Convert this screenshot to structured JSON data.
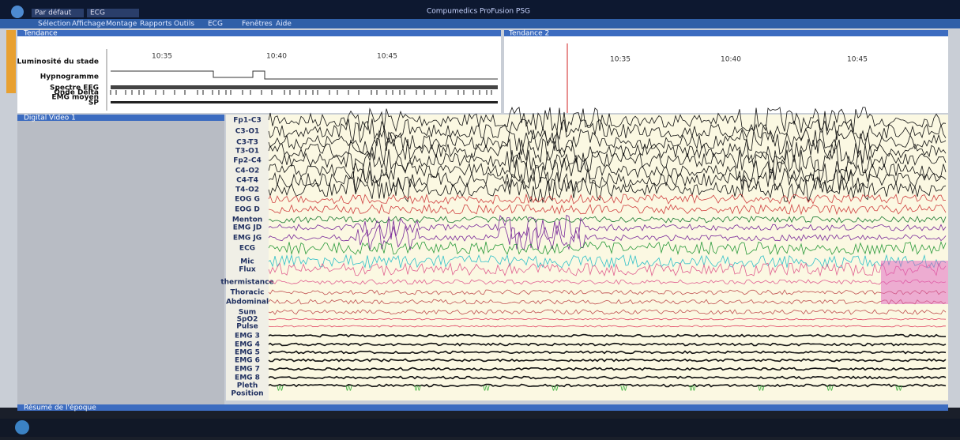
{
  "titlebar": {
    "tabs": [
      "Par défaut",
      "ECG"
    ],
    "title": "Compumedics ProFusion PSG"
  },
  "menu": [
    "Sélection",
    "Affichage",
    "Montage",
    "Rapports",
    "Outils",
    "ECG",
    "Fenêtres",
    "Aide"
  ],
  "trend1": {
    "title": "Tendance",
    "times": [
      "10:35",
      "10:40",
      "10:45"
    ],
    "rows": [
      "Luminosité du stade",
      "Hypnogramme",
      "Spectre EEG",
      "Onde Delta",
      "EMG moyen",
      "SP"
    ]
  },
  "trend2": {
    "title": "Tendance 2",
    "times": [
      "10:35",
      "10:40",
      "10:45"
    ]
  },
  "video": {
    "title": "Digital Video 1"
  },
  "channels": [
    "Fp1-C3",
    "C3-O1",
    "C3-T3",
    "T3-O1",
    "Fp2-C4",
    "C4-O2",
    "C4-T4",
    "T4-O2",
    "EOG G",
    "EOG D",
    "Menton",
    "EMG JD",
    "EMG JG",
    "ECG",
    "Mic",
    "Flux",
    "thermistance",
    "Thoracic",
    "Abdominal",
    "Sum",
    "SpO2",
    "Pulse",
    "EMG 3",
    "EMG 4",
    "EMG 5",
    "EMG 6",
    "EMG 7",
    "EMG 8",
    "Pleth",
    "Position"
  ],
  "stage_markers": [
    "W",
    "W",
    "W",
    "W",
    "W",
    "W",
    "W",
    "W",
    "W",
    "W"
  ],
  "footer": {
    "title": "Résumé de l'époque"
  }
}
